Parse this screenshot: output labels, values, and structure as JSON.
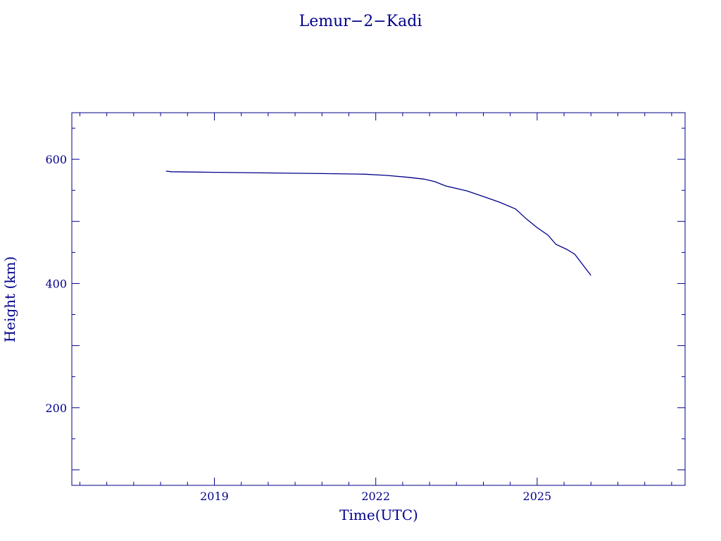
{
  "chart_data": {
    "type": "line",
    "title": "Lemur−2−Kadi",
    "xlabel": "Time(UTC)",
    "ylabel": "Height (km)",
    "xlim": [
      2016.35,
      2027.75
    ],
    "ylim": [
      75,
      675
    ],
    "x_major_ticks": [
      2019,
      2022,
      2025
    ],
    "x_tick_labels": [
      "2019",
      "2022",
      "2025"
    ],
    "y_major_ticks": [
      200,
      400,
      600
    ],
    "y_tick_labels": [
      "200",
      "400",
      "600"
    ],
    "grid": false,
    "color": "#00008b",
    "series": [
      {
        "x": [
          2018.1,
          2018.2,
          2019.0,
          2020.0,
          2021.0,
          2021.8,
          2022.2,
          2022.6,
          2022.9,
          2023.1,
          2023.3,
          2023.7,
          2024.0,
          2024.3,
          2024.6,
          2024.8,
          2025.0,
          2025.2,
          2025.35,
          2025.55,
          2025.7,
          2025.85,
          2026.0
        ],
        "y": [
          581,
          580,
          579,
          578,
          577,
          576,
          574,
          571,
          568,
          564,
          557,
          549,
          540,
          531,
          520,
          504,
          490,
          478,
          463,
          455,
          447,
          430,
          413
        ]
      }
    ]
  }
}
